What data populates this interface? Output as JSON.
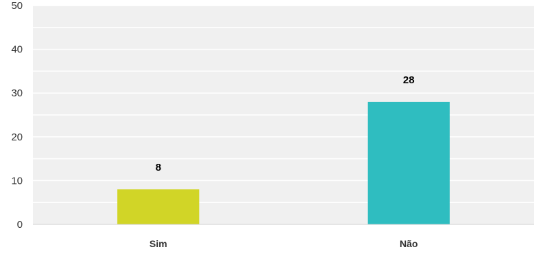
{
  "chart_data": {
    "type": "bar",
    "categories": [
      "Sim",
      "Não"
    ],
    "values": [
      8,
      28
    ],
    "data_labels": [
      "8",
      "28"
    ],
    "colors": [
      "#d1d527",
      "#2fbdc0"
    ],
    "title": "",
    "xlabel": "",
    "ylabel": "",
    "ylim": [
      0,
      50
    ],
    "y_ticks": [
      0,
      10,
      20,
      30,
      40,
      50
    ],
    "y_tick_labels": [
      "0",
      "10",
      "20",
      "30",
      "40",
      "50"
    ],
    "minor_y_ticks": [
      5,
      15,
      25,
      35,
      45
    ],
    "grid": true,
    "legend": "none",
    "plot_background": "#f0f0f0",
    "grid_color": "#ffffff"
  }
}
